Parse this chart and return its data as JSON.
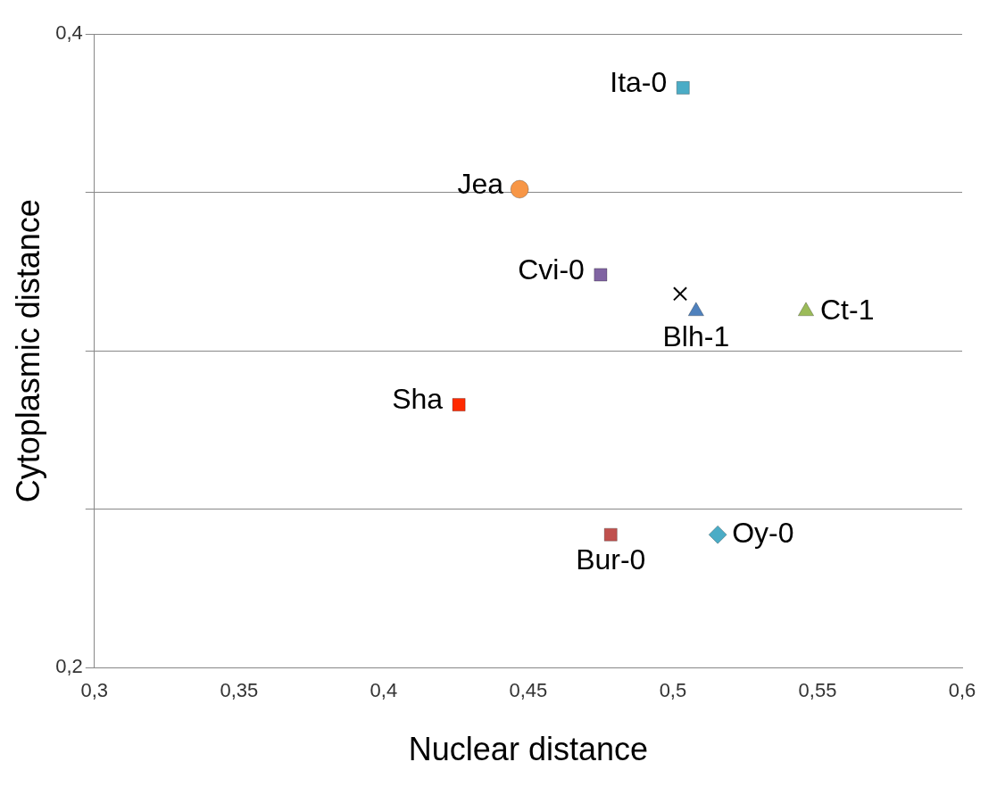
{
  "chart_data": {
    "type": "scatter",
    "xlabel": "Nuclear distance",
    "ylabel": "Cytoplasmic distance",
    "xlim": [
      0.3,
      0.6
    ],
    "ylim": [
      0.2,
      0.4
    ],
    "xticks": [
      {
        "value": 0.3,
        "label": "0,3"
      },
      {
        "value": 0.35,
        "label": "0,35"
      },
      {
        "value": 0.4,
        "label": "0,4"
      },
      {
        "value": 0.45,
        "label": "0,45"
      },
      {
        "value": 0.5,
        "label": "0,5"
      },
      {
        "value": 0.55,
        "label": "0,55"
      },
      {
        "value": 0.6,
        "label": "0,6"
      }
    ],
    "yticks": [
      {
        "value": 0.2,
        "label": "0,2"
      },
      {
        "value": 0.25,
        "label": null
      },
      {
        "value": 0.3,
        "label": null
      },
      {
        "value": 0.35,
        "label": null
      },
      {
        "value": 0.4,
        "label": "0,4"
      }
    ],
    "grid": "y",
    "legend": false,
    "series": [
      {
        "name": "Ita-0",
        "color": "#4bacc6",
        "marker": "square",
        "x": [
          0.5035
        ],
        "values": [
          0.383
        ]
      },
      {
        "name": "Jea",
        "color": "#f79646",
        "marker": "circle",
        "x": [
          0.447
        ],
        "values": [
          0.351
        ]
      },
      {
        "name": "Cvi-0",
        "color": "#8064a2",
        "marker": "square",
        "x": [
          0.475
        ],
        "values": [
          0.324
        ]
      },
      {
        "color": "#000000",
        "marker": "cross",
        "x": [
          0.5025
        ],
        "values": [
          0.318
        ]
      },
      {
        "name": "Blh-1",
        "color": "#4f81bd",
        "marker": "triangle",
        "x": [
          0.508
        ],
        "values": [
          0.3125
        ]
      },
      {
        "name": "Ct-1",
        "color": "#9bbb59",
        "marker": "triangle",
        "x": [
          0.546
        ],
        "values": [
          0.3125
        ]
      },
      {
        "name": "Sha",
        "color": "#ff2a00",
        "marker": "square",
        "x": [
          0.426
        ],
        "values": [
          0.283
        ]
      },
      {
        "name": "Bur-0",
        "color": "#c0504d",
        "marker": "square",
        "x": [
          0.4785
        ],
        "values": [
          0.242
        ]
      },
      {
        "name": "Oy-0",
        "color": "#4bacc6",
        "marker": "diamond",
        "x": [
          0.5155
        ],
        "values": [
          0.242
        ]
      }
    ]
  }
}
